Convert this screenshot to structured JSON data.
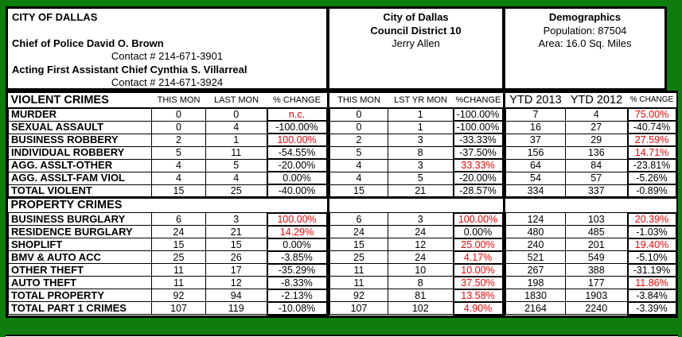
{
  "colors": {
    "page_green": "#0e7d0e",
    "alert_red": "#ff0000"
  },
  "header": {
    "agency": {
      "title": "CITY OF DALLAS",
      "chief_line": "Chief of Police David O. Brown",
      "chief_contact": "Contact # 214-671-3901",
      "assistant_line": "Acting First Assistant Chief Cynthia S. Villarreal",
      "assistant_contact": "Contact # 214-671-3924"
    },
    "district": {
      "city": "City of Dallas",
      "district": "Council District 10",
      "council_member": "Jerry Allen"
    },
    "demographics": {
      "title": "Demographics",
      "population": "Population: 87504",
      "area": "Area: 16.0 Sq. Miles"
    }
  },
  "crime_table": {
    "section1_title": "VIOLENT CRIMES",
    "section2_title": "PROPERTY CRIMES",
    "month_cols": [
      "THIS MON",
      "LAST MON",
      "% CHANGE"
    ],
    "lastyear_cols": [
      "THIS MON",
      "LST YR MON",
      "%CHANGE"
    ],
    "ytd_cols": [
      "YTD 2013",
      "YTD 2012",
      "% CHANGE"
    ],
    "violent_rows": [
      {
        "label": "MURDER",
        "cells": [
          "0",
          "0",
          "n.c.",
          "0",
          "1",
          "-100.00%",
          "7",
          "4",
          "75.00%"
        ],
        "red": [
          2,
          8
        ]
      },
      {
        "label": "SEXUAL ASSAULT",
        "cells": [
          "0",
          "4",
          "-100.00%",
          "0",
          "1",
          "-100.00%",
          "16",
          "27",
          "-40.74%"
        ],
        "red": []
      },
      {
        "label": "BUSINESS ROBBERY",
        "cells": [
          "2",
          "1",
          "100.00%",
          "2",
          "3",
          "-33.33%",
          "37",
          "29",
          "27.59%"
        ],
        "red": [
          2,
          8
        ]
      },
      {
        "label": "INDIVIDUAL ROBBERY",
        "cells": [
          "5",
          "11",
          "-54.55%",
          "5",
          "8",
          "-37.50%",
          "156",
          "136",
          "14.71%"
        ],
        "red": [
          8
        ]
      },
      {
        "label": "AGG. ASSLT-OTHER",
        "cells": [
          "4",
          "5",
          "-20.00%",
          "4",
          "3",
          "33.33%",
          "64",
          "84",
          "-23.81%"
        ],
        "red": [
          5
        ]
      },
      {
        "label": "AGG. ASSLT-FAM VIOL",
        "cells": [
          "4",
          "4",
          "0.00%",
          "4",
          "5",
          "-20.00%",
          "54",
          "57",
          "-5.26%"
        ],
        "red": []
      },
      {
        "label": "TOTAL VIOLENT",
        "cells": [
          "15",
          "25",
          "-40.00%",
          "15",
          "21",
          "-28.57%",
          "334",
          "337",
          "-0.89%"
        ],
        "red": []
      }
    ],
    "property_rows": [
      {
        "label": "BUSINESS BURGLARY",
        "cells": [
          "6",
          "3",
          "100.00%",
          "6",
          "3",
          "100.00%",
          "124",
          "103",
          "20.39%"
        ],
        "red": [
          2,
          5,
          8
        ]
      },
      {
        "label": "RESIDENCE BURGLARY",
        "cells": [
          "24",
          "21",
          "14.29%",
          "24",
          "24",
          "0.00%",
          "480",
          "485",
          "-1.03%"
        ],
        "red": [
          2
        ]
      },
      {
        "label": "SHOPLIFT",
        "cells": [
          "15",
          "15",
          "0.00%",
          "15",
          "12",
          "25.00%",
          "240",
          "201",
          "19.40%"
        ],
        "red": [
          5,
          8
        ]
      },
      {
        "label": "BMV & AUTO ACC",
        "cells": [
          "25",
          "26",
          "-3.85%",
          "25",
          "24",
          "4.17%",
          "521",
          "549",
          "-5.10%"
        ],
        "red": [
          5
        ]
      },
      {
        "label": "OTHER THEFT",
        "cells": [
          "11",
          "17",
          "-35.29%",
          "11",
          "10",
          "10.00%",
          "267",
          "388",
          "-31.19%"
        ],
        "red": [
          5
        ]
      },
      {
        "label": "AUTO THEFT",
        "cells": [
          "11",
          "12",
          "-8.33%",
          "11",
          "8",
          "37.50%",
          "198",
          "177",
          "11.86%"
        ],
        "red": [
          5,
          8
        ]
      },
      {
        "label": "TOTAL PROPERTY",
        "cells": [
          "92",
          "94",
          "-2.13%",
          "92",
          "81",
          "13.58%",
          "1830",
          "1903",
          "-3.84%"
        ],
        "red": [
          5
        ]
      },
      {
        "label": "TOTAL PART 1 CRIMES",
        "cells": [
          "107",
          "119",
          "-10.08%",
          "107",
          "102",
          "4.90%",
          "2164",
          "2240",
          "-3.39%"
        ],
        "red": [
          5
        ]
      }
    ]
  }
}
